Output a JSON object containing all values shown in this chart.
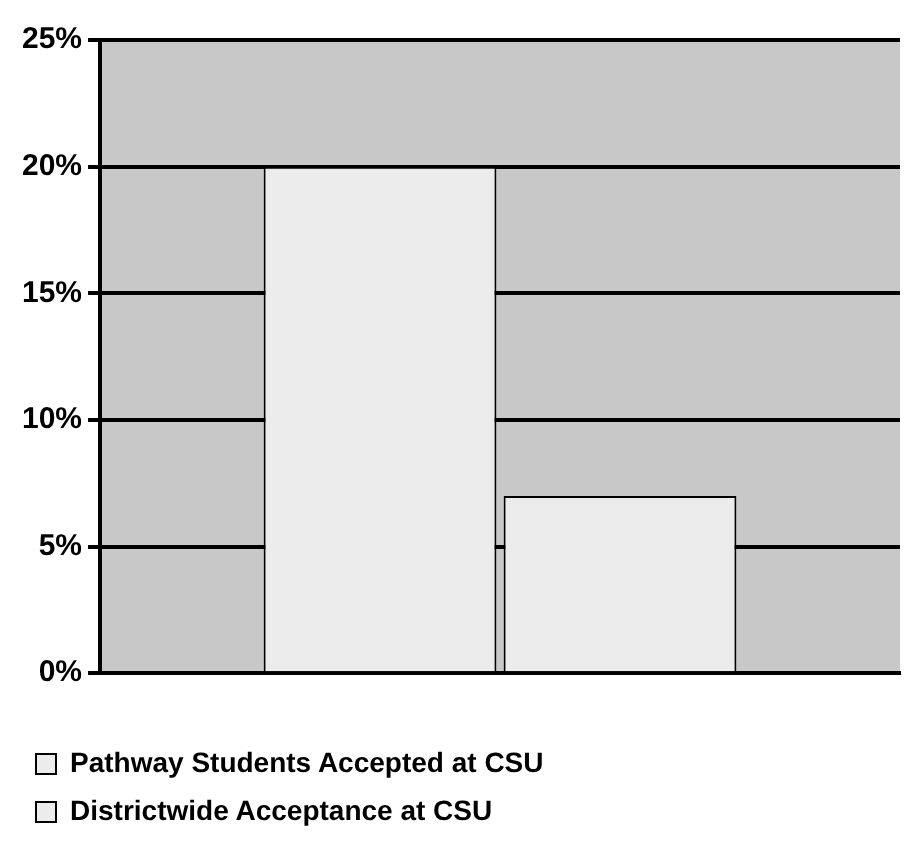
{
  "chart_data": {
    "type": "bar",
    "categories": [
      null
    ],
    "series": [
      {
        "name": "Pathway Students Accepted at CSU",
        "color": "#ececec",
        "values": [
          20
        ]
      },
      {
        "name": "Districtwide Acceptance at CSU",
        "color": "#ececec",
        "values": [
          7
        ]
      }
    ],
    "ylim": [
      0,
      25
    ],
    "yticks": [
      {
        "value": 0,
        "label": "0%"
      },
      {
        "value": 5,
        "label": "5%"
      },
      {
        "value": 10,
        "label": "10%"
      },
      {
        "value": 15,
        "label": "15%"
      },
      {
        "value": 20,
        "label": "20%"
      },
      {
        "value": 25,
        "label": "25%"
      }
    ],
    "grid": "y",
    "legend": "bottom"
  }
}
